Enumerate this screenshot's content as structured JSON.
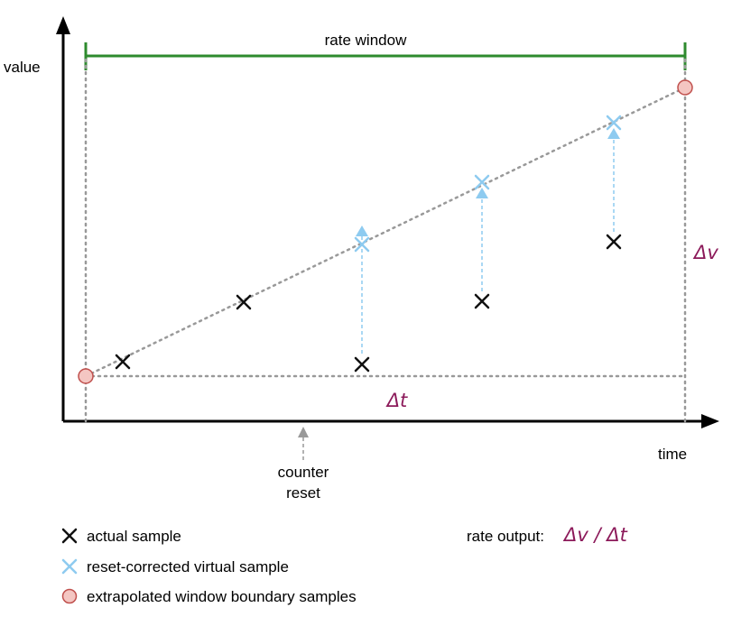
{
  "labels": {
    "y_axis": "value",
    "x_axis": "time",
    "rate_window": "rate window",
    "delta_v": "Δv",
    "delta_t": "Δt",
    "counter_reset_line1": "counter",
    "counter_reset_line2": "reset",
    "rate_output_prefix": "rate output:",
    "rate_output_formula": "Δv / Δt"
  },
  "legend": [
    {
      "label": "actual sample",
      "marker": "x-mark-icon"
    },
    {
      "label": "reset-corrected virtual sample",
      "marker": "light-blue-x-mark-icon"
    },
    {
      "label": "extrapolated window boundary samples",
      "marker": "pink-circle-icon"
    }
  ],
  "colors": {
    "axis": "#000000",
    "window": "#2e8b2e",
    "actual": "#111111",
    "virtual": "#8ecbf0",
    "boundary_fill": "#f4c6c2",
    "boundary_stroke": "#c0504d",
    "delta": "#8c1a5a",
    "dotted": "#999999"
  }
}
